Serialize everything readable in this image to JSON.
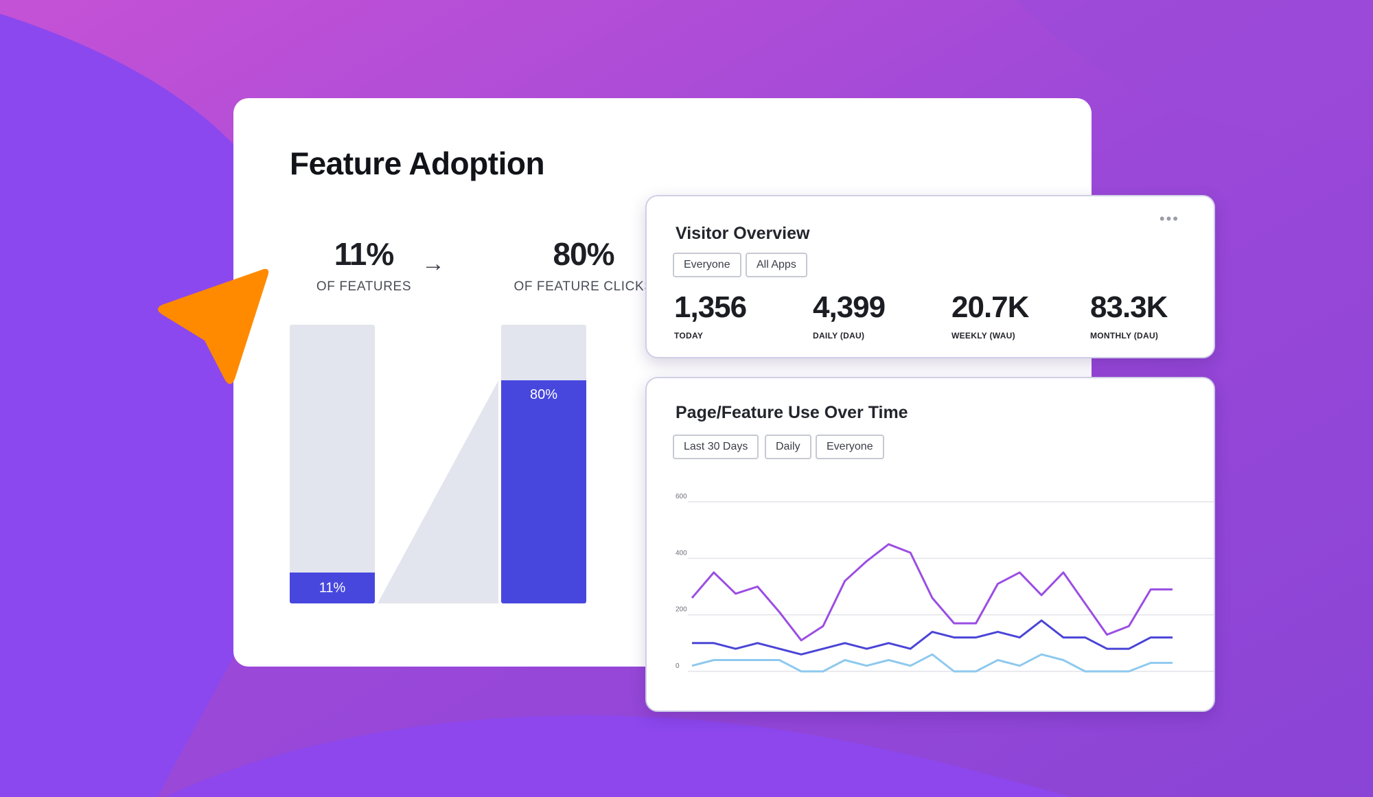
{
  "adoption": {
    "title": "Feature Adoption",
    "left_value": "11%",
    "left_caption": "OF FEATURES",
    "right_value": "80%",
    "right_caption": "OF FEATURE CLICKS",
    "left_fraction": 0.11,
    "right_fraction": 0.8,
    "left_bar_label": "11%",
    "right_bar_label": "80%"
  },
  "visitor": {
    "title": "Visitor Overview",
    "filters": [
      "Everyone",
      "All Apps"
    ],
    "metrics": [
      {
        "value": "1,356",
        "label": "TODAY"
      },
      {
        "value": "4,399",
        "label": "DAILY (DAU)"
      },
      {
        "value": "20.7K",
        "label": "WEEKLY (WAU)"
      },
      {
        "value": "83.3K",
        "label": "MONTHLY (DAU)"
      }
    ]
  },
  "usage": {
    "title": "Page/Feature Use Over Time",
    "filters": [
      "Last 30 Days",
      "Daily",
      "Everyone"
    ]
  },
  "chart_data": {
    "type": "line",
    "title": "Page/Feature Use Over Time",
    "ylim": [
      0,
      600
    ],
    "y_ticks": [
      "600",
      "400",
      "200",
      "0"
    ],
    "grid": true,
    "x": [
      1,
      2,
      3,
      4,
      5,
      6,
      7,
      8,
      9,
      10,
      11,
      12,
      13,
      14,
      15,
      16,
      17,
      18,
      19,
      20,
      21,
      22,
      23
    ],
    "series": [
      {
        "color": "#9b4de3",
        "values": [
          260,
          350,
          275,
          300,
          210,
          110,
          160,
          320,
          390,
          450,
          420,
          260,
          170,
          170,
          310,
          350,
          270,
          350,
          240,
          130,
          160,
          290,
          290
        ]
      },
      {
        "color": "#4a44d6",
        "values": [
          100,
          100,
          80,
          100,
          80,
          60,
          80,
          100,
          80,
          100,
          80,
          140,
          120,
          120,
          140,
          120,
          180,
          120,
          120,
          80,
          80,
          120,
          120
        ]
      },
      {
        "color": "#8ec9ef",
        "values": [
          20,
          40,
          40,
          40,
          40,
          0,
          0,
          40,
          20,
          40,
          20,
          60,
          0,
          0,
          40,
          20,
          60,
          40,
          0,
          0,
          0,
          30,
          30
        ]
      }
    ]
  },
  "colors": {
    "accent": "#4747de",
    "cursor": "#ff8a00",
    "track": "#e2e5ed"
  }
}
